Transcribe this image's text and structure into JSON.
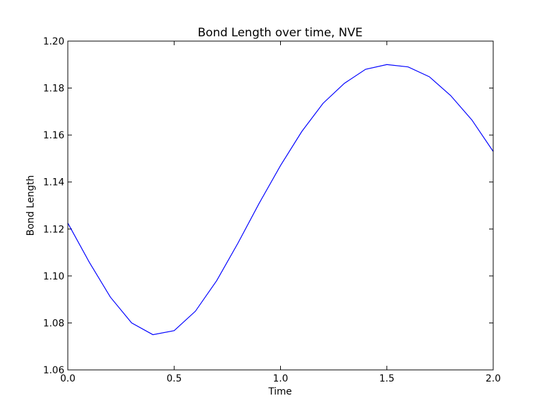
{
  "chart_data": {
    "type": "line",
    "title": "Bond Length over time, NVE",
    "xlabel": "Time",
    "ylabel": "Bond Length",
    "xlim": [
      0.0,
      2.0
    ],
    "ylim": [
      1.06,
      1.2
    ],
    "xticks": [
      "0.0",
      "0.5",
      "1.0",
      "1.5",
      "2.0"
    ],
    "yticks": [
      "1.06",
      "1.08",
      "1.10",
      "1.12",
      "1.14",
      "1.16",
      "1.18",
      "1.20"
    ],
    "grid": false,
    "series": [
      {
        "color": "#0000ff",
        "x": [
          0.0,
          0.1,
          0.2,
          0.3,
          0.4,
          0.5,
          0.6,
          0.7,
          0.8,
          0.9,
          1.0,
          1.1,
          1.2,
          1.3,
          1.4,
          1.5,
          1.6,
          1.7,
          1.8,
          1.9,
          2.0
        ],
        "y": [
          1.1225,
          1.106,
          1.091,
          1.08,
          1.075,
          1.0767,
          1.085,
          1.098,
          1.114,
          1.131,
          1.147,
          1.1615,
          1.1735,
          1.182,
          1.188,
          1.19,
          1.189,
          1.1848,
          1.1768,
          1.1664,
          1.153
        ]
      }
    ]
  }
}
